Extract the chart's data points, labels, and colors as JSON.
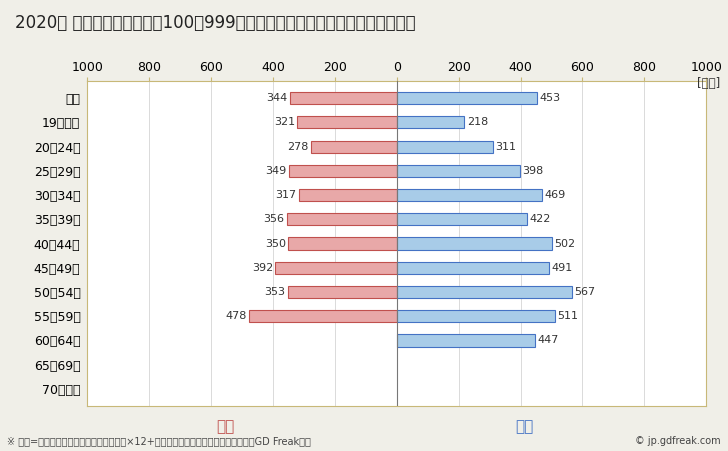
{
  "title": "2020年 民間企業（従業者数100～999人）フルタイム労働者の男女別平均年収",
  "unit_label": "[万円]",
  "categories": [
    "全体",
    "19歳以下",
    "20～24歳",
    "25～29歳",
    "30～34歳",
    "35～39歳",
    "40～44歳",
    "45～49歳",
    "50～54歳",
    "55～59歳",
    "60～64歳",
    "65～69歳",
    "70歳以上"
  ],
  "female_values": [
    344,
    321,
    278,
    349,
    317,
    356,
    350,
    392,
    353,
    478,
    0,
    0,
    0
  ],
  "male_values": [
    453,
    218,
    311,
    398,
    469,
    422,
    502,
    491,
    567,
    511,
    447,
    0,
    0
  ],
  "female_color": "#e8a8a8",
  "male_color": "#a8cce8",
  "female_edge_color": "#c0504d",
  "male_edge_color": "#4472c4",
  "female_label": "女性",
  "male_label": "男性",
  "female_label_color": "#c0504d",
  "male_label_color": "#4472c4",
  "xlim": [
    -1000,
    1000
  ],
  "xticks": [
    -1000,
    -800,
    -600,
    -400,
    -200,
    0,
    200,
    400,
    600,
    800,
    1000
  ],
  "xticklabels": [
    "1000",
    "800",
    "600",
    "400",
    "200",
    "0",
    "200",
    "400",
    "600",
    "800",
    "1000"
  ],
  "background_color": "#f0efe8",
  "plot_bg_color": "#ffffff",
  "grid_color": "#cccccc",
  "border_color": "#c8b878",
  "footnote": "※ 年収=「きまって支給する現金給与額」×12+「年間賞与その他特別給与額」としてGD Freak推計",
  "copyright": "© jp.gdfreak.com",
  "title_fontsize": 12,
  "axis_fontsize": 9,
  "bar_label_fontsize": 8,
  "legend_fontsize": 11,
  "footnote_fontsize": 7
}
